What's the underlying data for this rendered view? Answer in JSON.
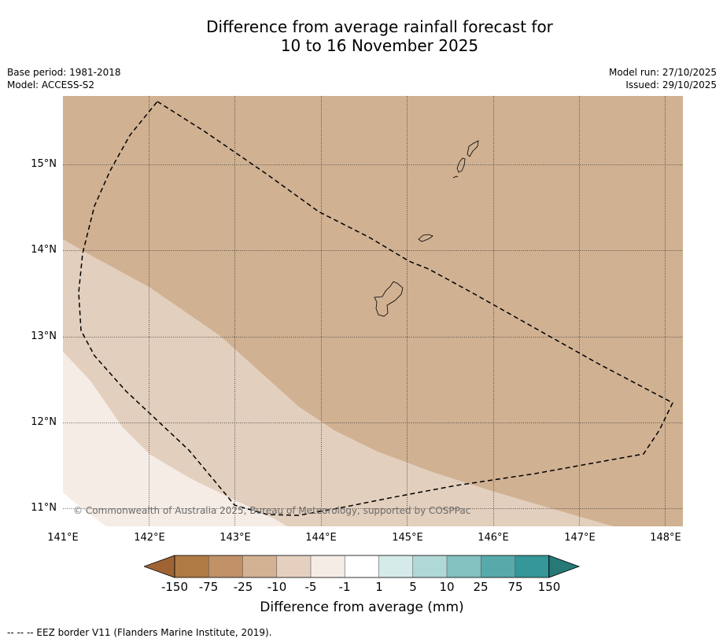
{
  "title": {
    "line1": "Difference from average rainfall forecast for",
    "line2": "10 to 16 November 2025"
  },
  "meta": {
    "base_period": "Base period: 1981-2018",
    "model": "Model: ACCESS-S2",
    "model_run": "Model run: 27/10/2025",
    "issued": "Issued: 29/10/2025"
  },
  "map": {
    "lat_labels": [
      "15°N",
      "14°N",
      "13°N",
      "12°N",
      "11°N"
    ],
    "lon_labels": [
      "141°E",
      "142°E",
      "143°E",
      "144°E",
      "145°E",
      "146°E",
      "147°E",
      "148°E"
    ],
    "copyright": "© Commonwealth of Australia 2025, Bureau of Meteorology, supported by COSPPac",
    "region_colors": {
      "band_m25_m10": "#d0b192",
      "band_m10_m5": "#e3cfbd",
      "band_m5_m1": "#f5ece6"
    }
  },
  "colorbar": {
    "label": "Difference from average (mm)",
    "ticks": [
      "-150",
      "-75",
      "-25",
      "-10",
      "-5",
      "-1",
      "1",
      "5",
      "10",
      "25",
      "75",
      "150"
    ],
    "colors": [
      "#a06434",
      "#b07a45",
      "#c19168",
      "#d3b294",
      "#e5d0c0",
      "#f5ece6",
      "#ffffff",
      "#d5ebea",
      "#b0d8d6",
      "#84c1c1",
      "#58aaaa",
      "#359797",
      "#267977"
    ]
  },
  "footnote": "--  --  -- EEZ border V11 (Flanders Marine Institute, 2019)."
}
